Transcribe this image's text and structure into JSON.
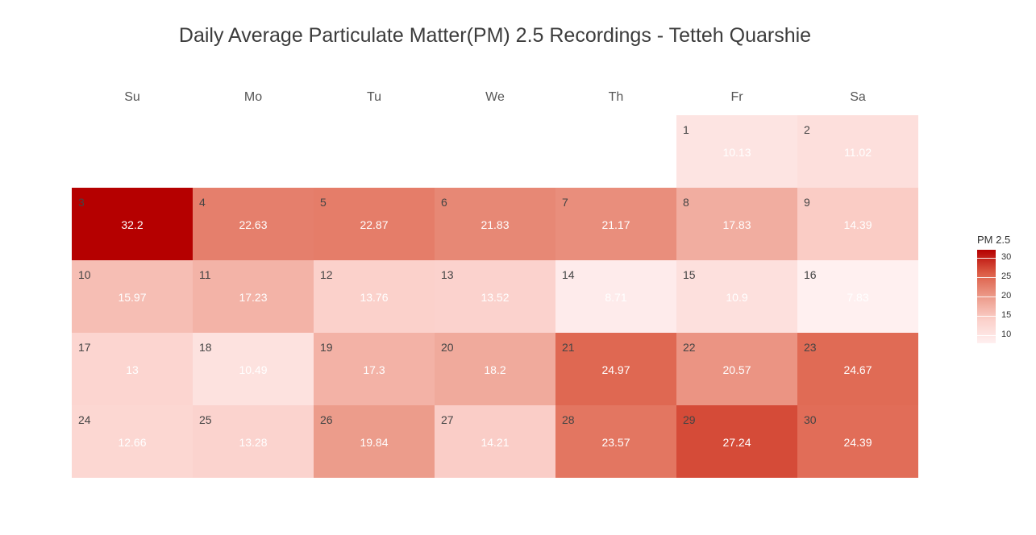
{
  "title": "Daily Average Particulate Matter(PM) 2.5 Recordings - Tetteh Quarshie",
  "weekdays": [
    "Su",
    "Mo",
    "Tu",
    "We",
    "Th",
    "Fr",
    "Sa"
  ],
  "chart_data": {
    "type": "heatmap",
    "title": "Daily Average Particulate Matter(PM) 2.5 Recordings - Tetteh Quarshie",
    "layout": "calendar",
    "first_weekday_index": 5,
    "days": [
      1,
      2,
      3,
      4,
      5,
      6,
      7,
      8,
      9,
      10,
      11,
      12,
      13,
      14,
      15,
      16,
      17,
      18,
      19,
      20,
      21,
      22,
      23,
      24,
      25,
      26,
      27,
      28,
      29,
      30
    ],
    "values": [
      10.13,
      11.02,
      32.2,
      22.63,
      22.87,
      21.83,
      21.17,
      17.83,
      14.39,
      15.97,
      17.23,
      13.76,
      13.52,
      8.71,
      10.9,
      7.83,
      13,
      10.49,
      17.3,
      18.2,
      24.97,
      20.57,
      24.67,
      12.66,
      13.28,
      19.84,
      14.21,
      23.57,
      27.24,
      24.39
    ],
    "value_labels": [
      "10.13",
      "11.02",
      "32.2",
      "22.63",
      "22.87",
      "21.83",
      "21.17",
      "17.83",
      "14.39",
      "15.97",
      "17.23",
      "13.76",
      "13.52",
      "8.71",
      "10.9",
      "7.83",
      "13",
      "10.49",
      "17.3",
      "18.2",
      "24.97",
      "20.57",
      "24.67",
      "12.66",
      "13.28",
      "19.84",
      "14.21",
      "23.57",
      "27.24",
      "24.39"
    ],
    "legend": {
      "title": "PM 2.5",
      "ticks": [
        10,
        15,
        20,
        25,
        30
      ],
      "range": [
        7.83,
        32.2
      ],
      "low_color": "#fff0f0",
      "high_color": "#b50000",
      "placement": "right"
    }
  }
}
